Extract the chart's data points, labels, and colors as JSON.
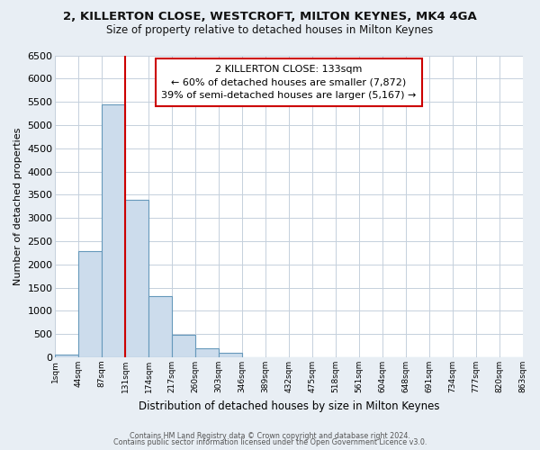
{
  "title": "2, KILLERTON CLOSE, WESTCROFT, MILTON KEYNES, MK4 4GA",
  "subtitle": "Size of property relative to detached houses in Milton Keynes",
  "xlabel": "Distribution of detached houses by size in Milton Keynes",
  "ylabel": "Number of detached properties",
  "bar_values": [
    50,
    2280,
    5450,
    3400,
    1310,
    490,
    185,
    90,
    0,
    0,
    0,
    0,
    0,
    0,
    0,
    0,
    0,
    0,
    0,
    0
  ],
  "bin_labels": [
    "1sqm",
    "44sqm",
    "87sqm",
    "131sqm",
    "174sqm",
    "217sqm",
    "260sqm",
    "303sqm",
    "346sqm",
    "389sqm",
    "432sqm",
    "475sqm",
    "518sqm",
    "561sqm",
    "604sqm",
    "648sqm",
    "691sqm",
    "734sqm",
    "777sqm",
    "820sqm",
    "863sqm"
  ],
  "bar_color": "#ccdcec",
  "bar_edge_color": "#6699bb",
  "annotation_title": "2 KILLERTON CLOSE: 133sqm",
  "annotation_line1": "← 60% of detached houses are smaller (7,872)",
  "annotation_line2": "39% of semi-detached houses are larger (5,167) →",
  "vline_color": "#cc0000",
  "annotation_box_color": "#ffffff",
  "annotation_box_edge": "#cc0000",
  "ylim": [
    0,
    6500
  ],
  "yticks": [
    0,
    500,
    1000,
    1500,
    2000,
    2500,
    3000,
    3500,
    4000,
    4500,
    5000,
    5500,
    6000,
    6500
  ],
  "footer_line1": "Contains HM Land Registry data © Crown copyright and database right 2024.",
  "footer_line2": "Contains public sector information licensed under the Open Government Licence v3.0.",
  "bg_color": "#e8eef4",
  "plot_bg_color": "#ffffff",
  "grid_color": "#c5d0dc"
}
